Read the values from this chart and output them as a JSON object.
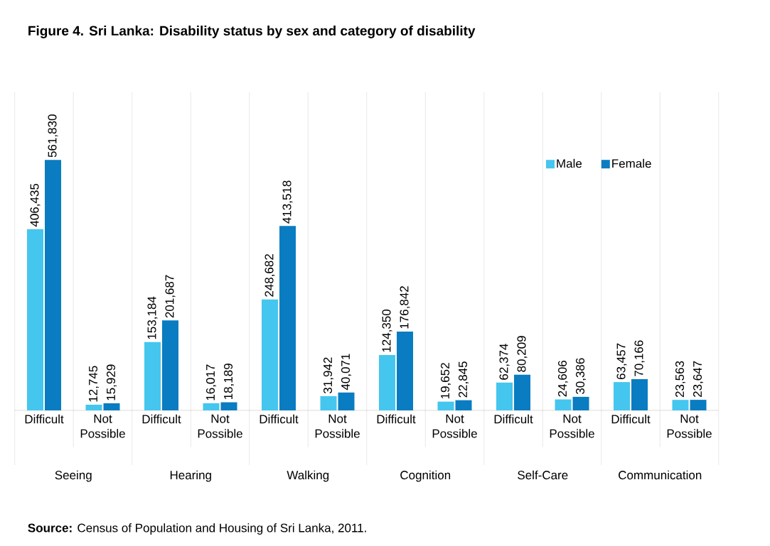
{
  "chart_data": {
    "type": "bar",
    "title": "Figure 4. Sri Lanka: Disability status by sex and category of disability",
    "categories": [
      "Difficult",
      "Not Possible",
      "Difficult",
      "Not Possible",
      "Difficult",
      "Not Possible",
      "Difficult",
      "Not Possible",
      "Difficult",
      "Not Possible",
      "Difficult",
      "Not Possible"
    ],
    "series": [
      {
        "name": "Male",
        "color": "#45c6ee",
        "values": [
          406435,
          12745,
          153184,
          16017,
          248682,
          31942,
          124350,
          19652,
          62374,
          24606,
          63457,
          23563
        ],
        "value_labels": [
          "406,435",
          "12,745",
          "153,184",
          "16,017",
          "248,682",
          "31,942",
          "124,350",
          "19,652",
          "62,374",
          "24,606",
          "63,457",
          "23,563"
        ]
      },
      {
        "name": "Female",
        "color": "#0a7cc1",
        "values": [
          561830,
          15929,
          201687,
          18189,
          413518,
          40071,
          176842,
          22845,
          80209,
          30386,
          70166,
          23647
        ],
        "value_labels": [
          "561,830",
          "15,929",
          "201,687",
          "18,189",
          "413,518",
          "40,071",
          "176,842",
          "22,845",
          "80,209",
          "30,386",
          "70,166",
          "23,647"
        ]
      }
    ],
    "annotations": [
      "Seeing",
      "Hearing",
      "Walking",
      "Cognition",
      "Self-Care",
      "Communication",
      "**Source:** Census of Population and Housing of Sri Lanka, 2011."
    ],
    "grid": "x",
    "legend": "top right"
  }
}
